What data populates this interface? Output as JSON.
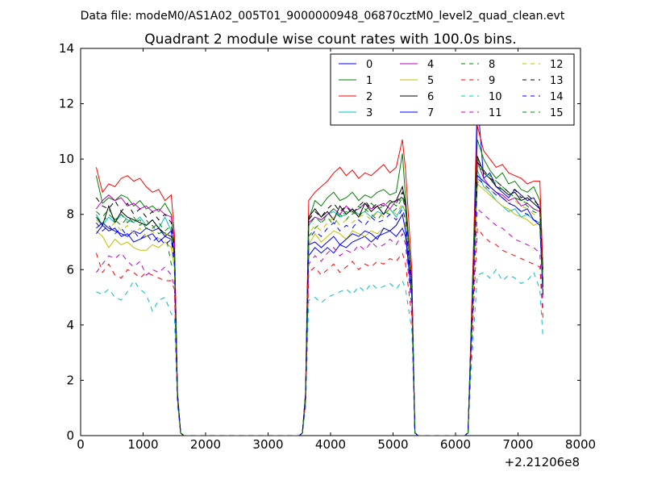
{
  "header": {
    "datafile": "Data file: modeM0/AS1A02_005T01_9000000948_06870cztM0_level2_quad_clean.evt"
  },
  "chart_data": {
    "type": "line",
    "title": "Quadrant 2 module wise count rates with 100.0s bins.",
    "xlabel": "",
    "ylabel": "",
    "x_offset_label": "+2.21206e8",
    "xlim": [
      0,
      8000
    ],
    "ylim": [
      0,
      14
    ],
    "xticks": [
      0,
      1000,
      2000,
      3000,
      4000,
      5000,
      6000,
      7000,
      8000
    ],
    "yticks": [
      0,
      2,
      4,
      6,
      8,
      10,
      12,
      14
    ],
    "grid": false,
    "legend_position": "top-right",
    "legend_columns": 4,
    "x": [
      250,
      350,
      450,
      550,
      650,
      750,
      850,
      950,
      1050,
      1150,
      1250,
      1350,
      1450,
      1500,
      1550,
      1600,
      1650,
      1700,
      3500,
      3550,
      3600,
      3650,
      3750,
      3850,
      3950,
      4050,
      4150,
      4250,
      4350,
      4450,
      4550,
      4650,
      4750,
      4850,
      4950,
      5050,
      5150,
      5200,
      5300,
      5350,
      5400,
      6150,
      6200,
      6250,
      6350,
      6450,
      6550,
      6650,
      6750,
      6850,
      6950,
      7050,
      7150,
      7250,
      7350,
      7400
    ],
    "series": [
      {
        "name": "0",
        "color": "#0000ff",
        "dash": "solid",
        "values": [
          7.5,
          7.7,
          7.5,
          7.4,
          7.3,
          7.2,
          7.4,
          7.3,
          7.5,
          7.4,
          7.5,
          7.2,
          7.1,
          6.5,
          1.5,
          0.1,
          0,
          0,
          0,
          0.1,
          1.5,
          6.5,
          6.8,
          6.6,
          6.8,
          6.6,
          6.9,
          6.8,
          7.0,
          7.1,
          7.2,
          7.0,
          7.2,
          7.3,
          7.4,
          7.2,
          7.5,
          7.2,
          5.0,
          0.1,
          0,
          0,
          0.1,
          3.5,
          12.2,
          9.3,
          9.5,
          9.0,
          8.8,
          8.6,
          8.9,
          8.7,
          8.5,
          8.6,
          8.2,
          5.2
        ]
      },
      {
        "name": "1",
        "color": "#008000",
        "dash": "solid",
        "values": [
          9.4,
          8.4,
          8.6,
          8.5,
          8.7,
          8.6,
          8.3,
          8.5,
          8.2,
          8.3,
          8.1,
          8.4,
          8.0,
          7.0,
          1.5,
          0.1,
          0,
          0,
          0,
          0.1,
          1.5,
          7.8,
          8.5,
          8.3,
          8.6,
          8.8,
          8.5,
          8.6,
          8.8,
          8.5,
          8.7,
          8.6,
          8.8,
          8.9,
          8.7,
          8.8,
          10.2,
          8.6,
          5.5,
          0.1,
          0,
          0,
          0.1,
          3.8,
          10.7,
          10.0,
          9.6,
          9.3,
          9.5,
          9.1,
          9.2,
          8.9,
          8.8,
          9.0,
          8.5,
          5.5
        ]
      },
      {
        "name": "2",
        "color": "#ff0000",
        "dash": "solid",
        "values": [
          9.7,
          8.8,
          9.1,
          9.0,
          9.3,
          9.4,
          9.2,
          9.3,
          9.0,
          8.8,
          8.9,
          8.5,
          8.7,
          7.3,
          1.6,
          0.1,
          0,
          0,
          0,
          0.1,
          1.6,
          8.5,
          8.8,
          9.0,
          9.2,
          9.5,
          9.7,
          9.4,
          9.6,
          9.3,
          9.5,
          9.4,
          9.6,
          9.8,
          9.5,
          9.7,
          10.7,
          9.6,
          6.0,
          0.1,
          0,
          0,
          0.1,
          4.0,
          11.2,
          10.3,
          10.0,
          9.7,
          9.8,
          9.5,
          9.4,
          9.3,
          9.1,
          9.2,
          9.2,
          6.0
        ]
      },
      {
        "name": "3",
        "color": "#00bfbf",
        "dash": "solid",
        "values": [
          8.0,
          7.6,
          7.9,
          7.7,
          8.0,
          7.8,
          7.7,
          7.9,
          7.6,
          7.8,
          7.5,
          7.9,
          7.4,
          6.6,
          1.5,
          0.1,
          0,
          0,
          0,
          0.1,
          1.4,
          7.6,
          7.9,
          7.8,
          8.0,
          8.1,
          7.9,
          8.0,
          8.2,
          8.0,
          8.1,
          7.9,
          8.1,
          8.0,
          8.2,
          7.9,
          8.3,
          8.1,
          5.3,
          0.1,
          0,
          0,
          0.1,
          3.6,
          9.6,
          9.0,
          8.8,
          8.5,
          8.3,
          8.1,
          8.2,
          7.9,
          8.0,
          7.8,
          7.7,
          5.0
        ]
      },
      {
        "name": "4",
        "color": "#bf00bf",
        "dash": "solid",
        "values": [
          8.2,
          8.5,
          8.7,
          8.5,
          8.6,
          8.3,
          8.4,
          8.2,
          8.3,
          8.1,
          8.2,
          8.0,
          7.9,
          6.9,
          1.5,
          0.1,
          0,
          0,
          0,
          0.1,
          1.5,
          7.7,
          7.9,
          7.8,
          8.0,
          8.2,
          8.0,
          8.3,
          8.1,
          8.2,
          8.4,
          8.2,
          8.3,
          8.4,
          8.2,
          8.5,
          8.6,
          8.3,
          5.5,
          0.1,
          0,
          0,
          0.1,
          3.7,
          9.9,
          9.3,
          9.0,
          8.8,
          8.7,
          8.5,
          8.6,
          8.3,
          8.4,
          8.2,
          8.1,
          5.3
        ]
      },
      {
        "name": "5",
        "color": "#bfbf00",
        "dash": "solid",
        "values": [
          7.4,
          7.2,
          6.8,
          7.1,
          6.9,
          7.0,
          6.8,
          6.7,
          6.7,
          6.9,
          6.8,
          7.0,
          6.8,
          6.1,
          1.4,
          0.1,
          0,
          0,
          0,
          0.1,
          1.3,
          6.9,
          7.3,
          7.0,
          7.2,
          7.4,
          7.3,
          7.1,
          7.4,
          7.3,
          7.2,
          7.4,
          7.3,
          7.5,
          7.4,
          7.6,
          8.0,
          7.5,
          5.1,
          0.1,
          0,
          0,
          0.1,
          3.3,
          9.1,
          8.9,
          8.7,
          8.5,
          8.3,
          8.2,
          8.0,
          7.9,
          7.8,
          7.6,
          7.7,
          5.1
        ]
      },
      {
        "name": "6",
        "color": "#000000",
        "dash": "solid",
        "values": [
          7.9,
          7.6,
          8.3,
          7.7,
          8.1,
          7.9,
          7.8,
          7.7,
          7.6,
          7.8,
          7.5,
          7.3,
          7.2,
          6.5,
          1.5,
          0.1,
          0,
          0,
          0,
          0.1,
          1.4,
          7.9,
          8.2,
          7.9,
          8.1,
          7.8,
          8.3,
          8.0,
          8.2,
          7.9,
          8.4,
          8.1,
          8.3,
          8.0,
          8.4,
          8.5,
          9.0,
          8.4,
          5.4,
          0.1,
          0,
          0,
          0.1,
          3.7,
          10.1,
          9.5,
          9.3,
          9.0,
          8.9,
          8.7,
          8.8,
          8.5,
          8.6,
          8.4,
          8.2,
          5.3
        ]
      },
      {
        "name": "7",
        "color": "#0000ff",
        "dash": "solid",
        "values": [
          7.3,
          7.6,
          7.4,
          7.5,
          7.2,
          7.3,
          7.0,
          7.1,
          7.2,
          7.3,
          7.0,
          7.2,
          7.4,
          6.5,
          1.5,
          0.1,
          0,
          0,
          0,
          0.1,
          1.4,
          6.9,
          7.0,
          6.8,
          7.0,
          7.2,
          6.9,
          7.1,
          7.3,
          7.2,
          7.4,
          7.3,
          7.1,
          7.5,
          7.4,
          7.6,
          8.0,
          7.4,
          5.0,
          0.1,
          0,
          0,
          0.1,
          3.4,
          9.4,
          9.2,
          9.0,
          8.8,
          8.6,
          8.4,
          8.3,
          8.1,
          8.2,
          7.8,
          7.6,
          5.1
        ]
      },
      {
        "name": "8",
        "color": "#008000",
        "dash": "dashed",
        "values": [
          7.9,
          7.7,
          8.0,
          7.8,
          7.6,
          7.9,
          7.7,
          7.8,
          7.5,
          7.6,
          7.3,
          7.4,
          6.2,
          6.0,
          1.4,
          0.1,
          0,
          0,
          0,
          0.1,
          1.4,
          7.2,
          7.5,
          7.7,
          7.9,
          7.6,
          8.0,
          7.8,
          8.1,
          7.9,
          8.2,
          8.0,
          7.8,
          8.1,
          8.0,
          8.2,
          8.6,
          8.2,
          5.4,
          0.1,
          0,
          0,
          0.1,
          3.7,
          10.0,
          9.6,
          9.4,
          9.2,
          9.0,
          8.8,
          8.6,
          8.5,
          8.3,
          8.1,
          8.0,
          5.4
        ]
      },
      {
        "name": "9",
        "color": "#ff0000",
        "dash": "dashed",
        "values": [
          6.6,
          5.9,
          6.2,
          5.8,
          5.7,
          6.0,
          5.9,
          5.7,
          5.9,
          5.8,
          5.7,
          5.6,
          5.6,
          5.3,
          1.3,
          0.1,
          0,
          0,
          0,
          0.1,
          1.2,
          5.9,
          6.1,
          5.8,
          6.0,
          6.2,
          5.9,
          6.1,
          6.3,
          6.0,
          6.2,
          6.1,
          6.3,
          6.2,
          6.4,
          6.3,
          6.6,
          6.2,
          4.3,
          0.1,
          0,
          0,
          0.1,
          2.8,
          7.5,
          7.2,
          7.0,
          6.9,
          6.7,
          6.6,
          6.5,
          6.4,
          6.3,
          6.2,
          6.1,
          4.2
        ]
      },
      {
        "name": "10",
        "color": "#00bfbf",
        "dash": "dashed",
        "values": [
          5.2,
          5.1,
          5.3,
          5.0,
          4.9,
          5.2,
          5.6,
          5.3,
          5.1,
          4.5,
          4.9,
          5.0,
          4.4,
          4.3,
          1.1,
          0.1,
          0,
          0,
          0,
          0.1,
          1.0,
          4.9,
          5.0,
          4.8,
          5.0,
          5.1,
          5.2,
          5.3,
          5.1,
          5.4,
          5.2,
          5.5,
          5.3,
          5.4,
          5.5,
          5.3,
          5.6,
          5.3,
          3.8,
          0.1,
          0,
          0,
          0.1,
          2.4,
          5.8,
          5.9,
          5.7,
          6.0,
          5.6,
          5.8,
          5.7,
          5.5,
          5.6,
          5.9,
          5.3,
          3.5
        ]
      },
      {
        "name": "11",
        "color": "#bf00bf",
        "dash": "dashed",
        "values": [
          5.9,
          6.2,
          6.5,
          6.4,
          6.6,
          6.3,
          6.1,
          6.3,
          5.8,
          6.0,
          5.9,
          6.1,
          5.8,
          5.4,
          1.3,
          0.1,
          0,
          0,
          0,
          0.1,
          1.3,
          6.2,
          6.5,
          6.3,
          6.6,
          6.8,
          6.5,
          6.7,
          6.6,
          6.9,
          6.7,
          7.0,
          6.8,
          6.9,
          7.1,
          6.9,
          7.3,
          6.9,
          4.6,
          0.1,
          0,
          0,
          0.1,
          3.1,
          8.2,
          8.0,
          7.8,
          7.6,
          7.5,
          7.3,
          7.1,
          7.0,
          6.9,
          6.8,
          6.6,
          4.5
        ]
      },
      {
        "name": "12",
        "color": "#bfbf00",
        "dash": "dashed",
        "values": [
          7.8,
          7.6,
          7.5,
          7.7,
          7.4,
          7.6,
          7.3,
          7.5,
          7.2,
          7.4,
          7.1,
          7.3,
          7.2,
          6.3,
          1.4,
          0.1,
          0,
          0,
          0,
          0.1,
          1.4,
          7.3,
          7.6,
          7.4,
          7.7,
          7.9,
          7.6,
          7.8,
          7.7,
          7.9,
          8.0,
          7.8,
          8.1,
          7.9,
          8.2,
          8.0,
          8.4,
          8.0,
          5.3,
          0.1,
          0,
          0,
          0.1,
          3.6,
          9.2,
          9.0,
          8.9,
          8.7,
          8.6,
          8.4,
          8.5,
          8.3,
          8.2,
          8.0,
          7.9,
          5.3
        ]
      },
      {
        "name": "13",
        "color": "#000000",
        "dash": "dashed",
        "values": [
          8.6,
          8.3,
          8.2,
          8.5,
          8.1,
          8.4,
          8.0,
          8.2,
          7.9,
          8.1,
          7.8,
          8.0,
          7.7,
          6.8,
          1.5,
          0.1,
          0,
          0,
          0,
          0.1,
          1.5,
          7.8,
          8.1,
          7.9,
          8.2,
          8.4,
          8.1,
          8.3,
          8.0,
          8.3,
          8.5,
          8.2,
          8.4,
          8.3,
          8.5,
          8.4,
          8.8,
          8.4,
          5.5,
          0.1,
          0,
          0,
          0.1,
          3.8,
          9.9,
          9.6,
          9.3,
          9.2,
          9.0,
          8.8,
          8.9,
          8.6,
          8.7,
          8.5,
          8.3,
          5.4
        ]
      },
      {
        "name": "14",
        "color": "#0000ff",
        "dash": "dashed",
        "values": [
          7.7,
          7.4,
          7.6,
          7.3,
          7.5,
          7.2,
          7.4,
          7.1,
          7.3,
          7.0,
          7.2,
          6.9,
          7.1,
          6.2,
          1.4,
          0.1,
          0,
          0,
          0,
          0.1,
          1.4,
          7.1,
          7.4,
          7.2,
          7.5,
          7.7,
          7.4,
          7.6,
          7.5,
          7.8,
          7.6,
          7.9,
          7.7,
          7.8,
          8.0,
          7.8,
          8.2,
          7.8,
          5.2,
          0.1,
          0,
          0,
          0.1,
          3.5,
          9.3,
          9.1,
          8.9,
          8.7,
          8.6,
          8.4,
          8.3,
          8.1,
          8.0,
          7.8,
          7.7,
          5.2
        ]
      },
      {
        "name": "15",
        "color": "#008000",
        "dash": "dashed",
        "values": [
          8.1,
          7.9,
          8.2,
          7.8,
          8.0,
          7.7,
          7.9,
          7.6,
          7.8,
          7.5,
          7.7,
          7.4,
          7.6,
          6.6,
          1.5,
          0.1,
          0,
          0,
          0,
          0.1,
          1.5,
          7.6,
          7.9,
          7.7,
          8.0,
          8.2,
          7.9,
          8.1,
          8.0,
          8.3,
          8.1,
          8.4,
          8.2,
          8.3,
          8.5,
          8.3,
          8.7,
          8.3,
          5.4,
          0.1,
          0,
          0,
          0.1,
          3.7,
          9.8,
          9.5,
          9.3,
          9.1,
          8.9,
          8.8,
          8.6,
          8.5,
          8.4,
          8.2,
          8.1,
          5.4
        ]
      }
    ]
  }
}
